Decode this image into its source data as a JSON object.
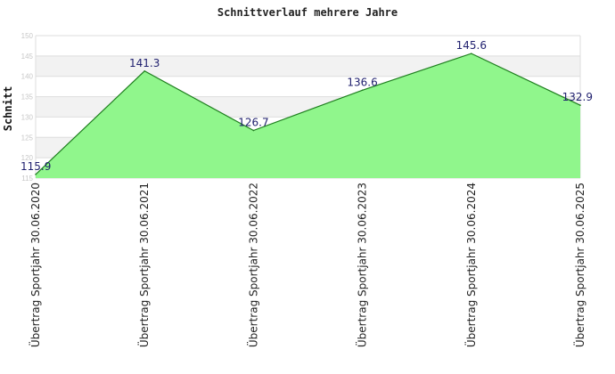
{
  "chart_data": {
    "type": "area",
    "title": "Schnittverlauf mehrere Jahre",
    "xlabel": "",
    "ylabel": "Schnitt",
    "ylim": [
      115,
      150
    ],
    "yticks": [
      115,
      120,
      125,
      130,
      135,
      140,
      145,
      150
    ],
    "ytick_labels": [
      "115",
      "120",
      "125",
      "130",
      "135",
      "140",
      "145",
      "150"
    ],
    "categories": [
      "Übertrag Sportjahr 30.06.2020",
      "Übertrag Sportjahr 30.06.2021",
      "Übertrag Sportjahr 30.06.2022",
      "Übertrag Sportjahr 30.06.2023",
      "Übertrag Sportjahr 30.06.2024",
      "Übertrag Sportjahr 30.06.2025"
    ],
    "values": [
      115.9,
      141.3,
      126.7,
      136.6,
      145.6,
      132.9
    ],
    "value_labels": [
      "115.9",
      "141.3",
      "126.7",
      "136.6",
      "145.6",
      "132.9"
    ],
    "grid": true,
    "legend": "none",
    "colors": {
      "fill": "#90f68c",
      "line": "#1e7e1e",
      "band": "#f2f2f2",
      "grid": "#dddddd",
      "value_label": "#1f1f6e"
    }
  }
}
